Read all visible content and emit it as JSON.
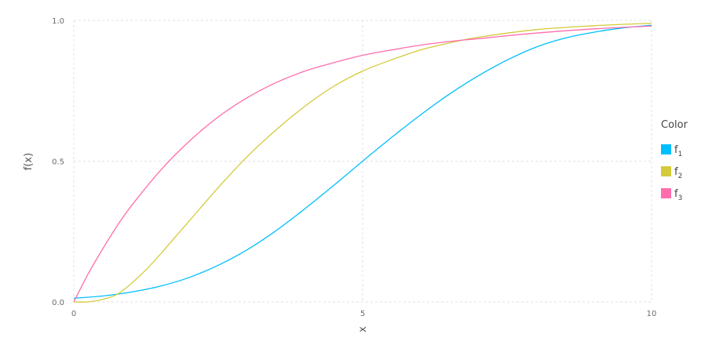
{
  "chart_data": {
    "type": "line",
    "xlabel": "x",
    "ylabel": "f(x)",
    "xlim": [
      0,
      10
    ],
    "ylim": [
      0,
      1
    ],
    "x_ticks": [
      "0",
      "5",
      "10"
    ],
    "y_ticks": [
      "0.0",
      "0.5",
      "1.0"
    ],
    "grid": true,
    "legend": {
      "title": "Color",
      "placement": "right",
      "entries": [
        {
          "base": "f",
          "sub": "1",
          "color": "#00bfff"
        },
        {
          "base": "f",
          "sub": "2",
          "color": "#d4ca3a"
        },
        {
          "base": "f",
          "sub": "3",
          "color": "#ff6dae"
        }
      ]
    },
    "series": [
      {
        "color": "#00bfff",
        "x": [
          0,
          0.5,
          1,
          1.5,
          2,
          2.5,
          3,
          3.5,
          4,
          4.5,
          5,
          5.5,
          6,
          6.5,
          7,
          7.5,
          8,
          8.5,
          9,
          9.5,
          10
        ],
        "y": [
          0.013,
          0.021,
          0.035,
          0.056,
          0.087,
          0.13,
          0.185,
          0.253,
          0.331,
          0.414,
          0.5,
          0.584,
          0.664,
          0.738,
          0.803,
          0.859,
          0.905,
          0.937,
          0.958,
          0.973,
          0.983
        ]
      },
      {
        "color": "#d4ca3a",
        "x": [
          0,
          0.25,
          0.5,
          0.75,
          1,
          1.25,
          1.5,
          1.75,
          2,
          2.5,
          3,
          3.5,
          4,
          4.5,
          5,
          5.5,
          6,
          6.5,
          7,
          8,
          9,
          10
        ],
        "y": [
          0.0,
          0.0,
          0.009,
          0.027,
          0.066,
          0.114,
          0.17,
          0.229,
          0.288,
          0.406,
          0.516,
          0.611,
          0.695,
          0.766,
          0.82,
          0.86,
          0.895,
          0.92,
          0.94,
          0.967,
          0.981,
          0.99
        ]
      },
      {
        "color": "#ff6dae",
        "x": [
          0,
          0.25,
          0.5,
          0.75,
          1,
          1.5,
          2,
          2.5,
          3,
          3.5,
          4,
          4.5,
          5,
          5.5,
          6,
          6.5,
          7,
          8,
          9,
          10
        ],
        "y": [
          0.0,
          0.1,
          0.188,
          0.27,
          0.342,
          0.467,
          0.571,
          0.657,
          0.725,
          0.779,
          0.82,
          0.85,
          0.876,
          0.895,
          0.912,
          0.925,
          0.935,
          0.955,
          0.97,
          0.98
        ]
      }
    ]
  }
}
